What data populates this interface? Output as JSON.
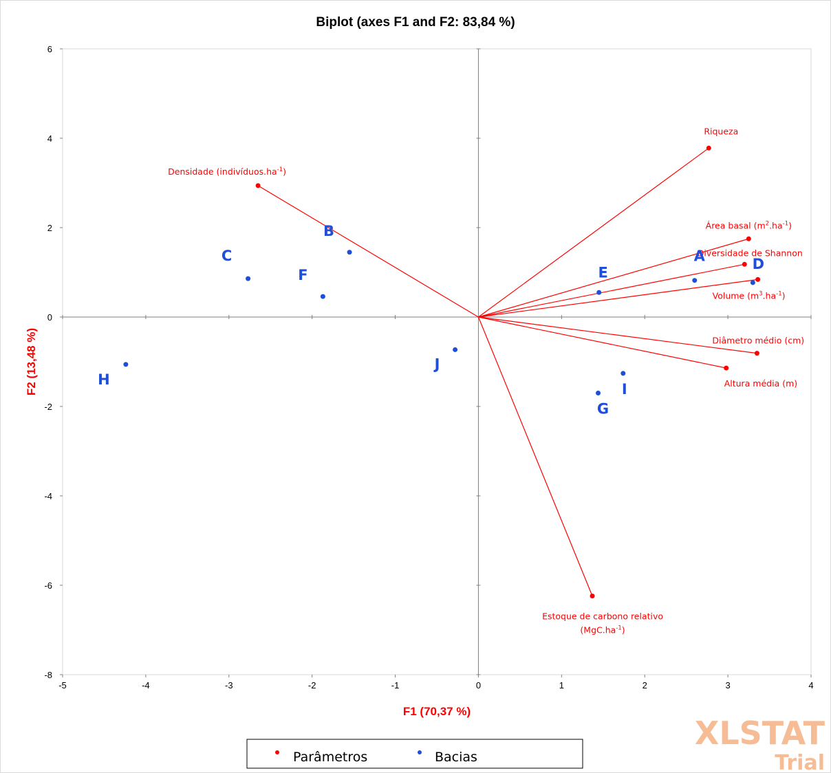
{
  "chart_data": {
    "type": "scatter",
    "title": "Biplot (axes F1 and F2: 83,84 %)",
    "xlabel": "F1 (70,37 %)",
    "ylabel": "F2 (13,48 %)",
    "xlim": [
      -5,
      4
    ],
    "ylim": [
      -8,
      6
    ],
    "xticks": [
      "-5",
      "-4",
      "-3",
      "-2",
      "-1",
      "0",
      "1",
      "2",
      "3",
      "4"
    ],
    "yticks": [
      "6",
      "4",
      "2",
      "0",
      "-2",
      "-4",
      "-6",
      "-8"
    ],
    "grid": false,
    "legend_position": "bottom",
    "series": [
      {
        "name": "Parâmetros",
        "color": "#ff0000",
        "style": "vectors-from-origin",
        "points": [
          {
            "label": "Riqueza",
            "sup": "",
            "label_line2": "",
            "x": 2.77,
            "y": 3.78
          },
          {
            "label": "Densidade (indivíduos.ha",
            "sup": "-1",
            "label_after": ")",
            "label_line2": "",
            "x": -2.65,
            "y": 2.94
          },
          {
            "label": "Área basal (m",
            "sup": "2",
            "label_after": ".ha",
            "sup2": "-1",
            "label_after2": ")",
            "label_line2": "",
            "x": 3.25,
            "y": 1.75
          },
          {
            "label": "Diversidade de Shannon",
            "sup": "",
            "label_line2": "",
            "x": 3.2,
            "y": 1.18
          },
          {
            "label": "Volume (m",
            "sup": "3",
            "label_after": ".ha",
            "sup2": "-1",
            "label_after2": ")",
            "label_line2": "",
            "x": 3.36,
            "y": 0.84
          },
          {
            "label": "Diâmetro médio (cm)",
            "sup": "",
            "label_line2": "",
            "x": 3.35,
            "y": -0.81
          },
          {
            "label": "Altura média (m)",
            "sup": "",
            "label_line2": "",
            "x": 2.98,
            "y": -1.14
          },
          {
            "label": "Estoque de carbono relativo",
            "sup": "",
            "label_line2": "(MgC.ha",
            "sup_line2": "-1",
            "label_line2_after": ")",
            "x": 1.37,
            "y": -6.24
          }
        ]
      },
      {
        "name": "Bacias",
        "color": "#1f4fd8",
        "style": "points",
        "points": [
          {
            "label": "A",
            "x": 2.6,
            "y": 0.82
          },
          {
            "label": "B",
            "x": -1.55,
            "y": 1.45
          },
          {
            "label": "C",
            "x": -2.77,
            "y": 0.86
          },
          {
            "label": "D",
            "x": 3.3,
            "y": 0.77
          },
          {
            "label": "E",
            "x": 1.45,
            "y": 0.55
          },
          {
            "label": "F",
            "x": -1.87,
            "y": 0.46
          },
          {
            "label": "G",
            "x": 1.44,
            "y": -1.7
          },
          {
            "label": "H",
            "x": -4.24,
            "y": -1.06
          },
          {
            "label": "I",
            "x": 1.74,
            "y": -1.26
          },
          {
            "label": "J",
            "x": -0.28,
            "y": -0.73
          }
        ]
      }
    ]
  },
  "watermark": {
    "line1": "XLSTAT",
    "line2": "Trial"
  }
}
